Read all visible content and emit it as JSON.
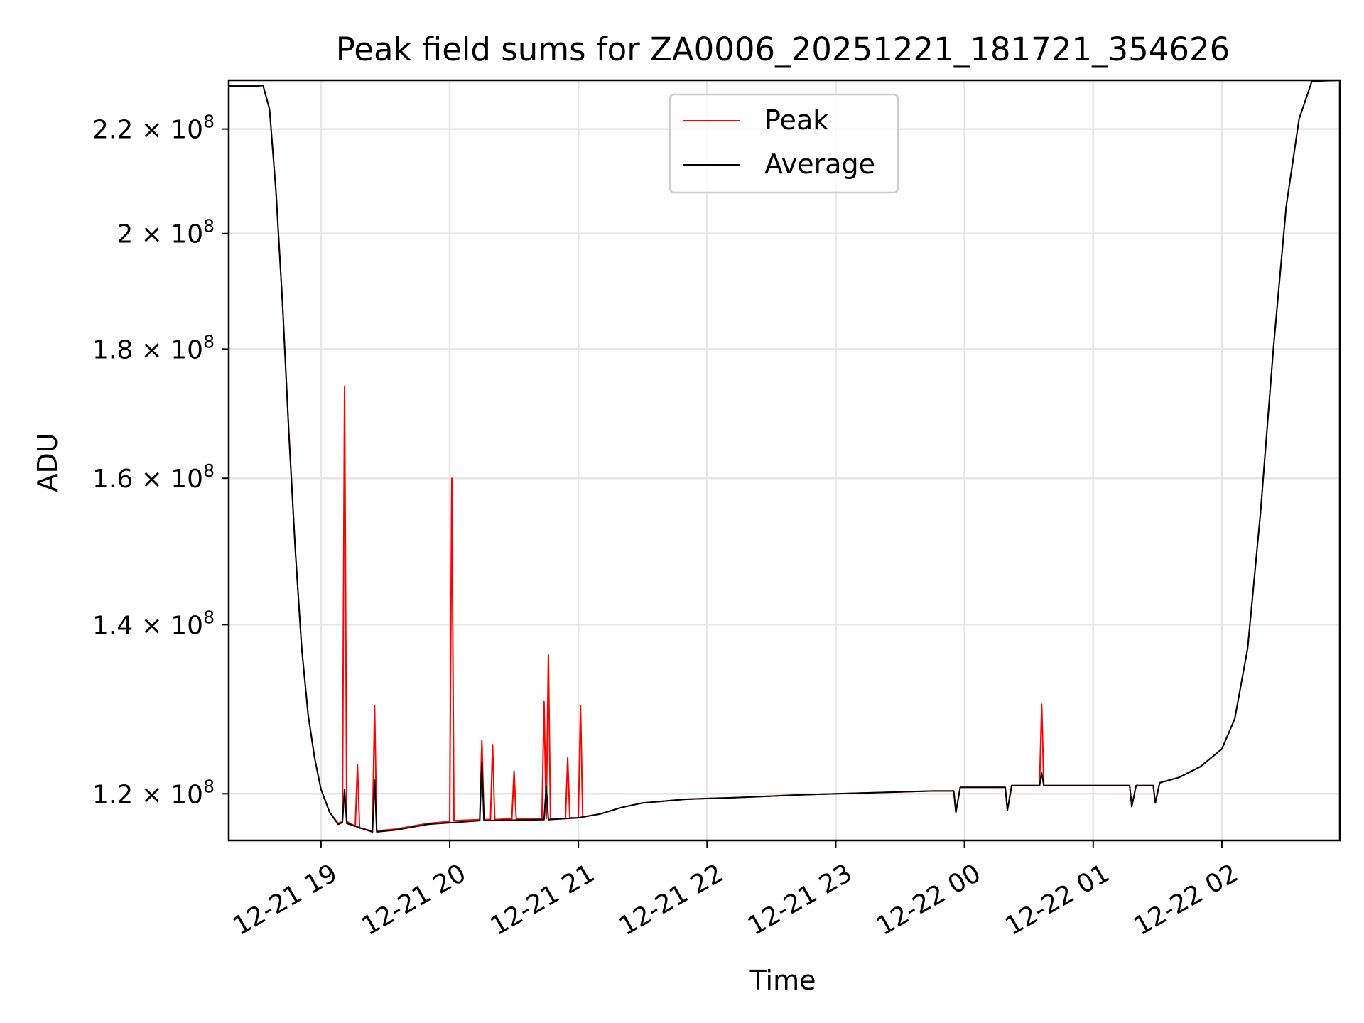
{
  "chart_data": {
    "type": "line",
    "title": "Peak field sums for ZA0006_20251221_181721_354626",
    "xlabel": "Time",
    "ylabel": "ADU",
    "y_scale": "log",
    "xlim": [
      "2025-12-21 18:17",
      "2025-12-22 02:55"
    ],
    "ylim": [
      115000000,
      230000000
    ],
    "grid": true,
    "legend_position": "upper center",
    "x_ticks": [
      "2025-12-21 19:00",
      "2025-12-21 20:00",
      "2025-12-21 21:00",
      "2025-12-21 22:00",
      "2025-12-21 23:00",
      "2025-12-22 00:00",
      "2025-12-22 01:00",
      "2025-12-22 02:00"
    ],
    "x_tick_labels": [
      "12-21 19",
      "12-21 20",
      "12-21 21",
      "12-21 22",
      "12-21 23",
      "12-22 00",
      "12-22 01",
      "12-22 02"
    ],
    "y_ticks": [
      120000000,
      140000000,
      160000000,
      180000000,
      200000000,
      220000000
    ],
    "y_tick_labels": [
      {
        "mantissa": "1.2",
        "exp": "8"
      },
      {
        "mantissa": "1.4",
        "exp": "8"
      },
      {
        "mantissa": "1.6",
        "exp": "8"
      },
      {
        "mantissa": "1.8",
        "exp": "8"
      },
      {
        "mantissa": "2",
        "exp": "8"
      },
      {
        "mantissa": "2.2",
        "exp": "8"
      }
    ],
    "series": [
      {
        "name": "Peak",
        "color": "#ff0000",
        "points": [
          [
            "2025-12-21 18:17",
            228800000
          ],
          [
            "2025-12-21 18:30",
            228800000
          ],
          [
            "2025-12-21 18:33",
            228900000
          ],
          [
            "2025-12-21 18:36",
            224000000
          ],
          [
            "2025-12-21 18:39",
            208000000
          ],
          [
            "2025-12-21 18:42",
            188000000
          ],
          [
            "2025-12-21 18:45",
            167000000
          ],
          [
            "2025-12-21 18:48",
            150000000
          ],
          [
            "2025-12-21 18:51",
            137000000
          ],
          [
            "2025-12-21 18:54",
            129000000
          ],
          [
            "2025-12-21 18:57",
            124000000
          ],
          [
            "2025-12-21 19:00",
            120500000
          ],
          [
            "2025-12-21 19:04",
            118000000
          ],
          [
            "2025-12-21 19:08",
            116800000
          ],
          [
            "2025-12-21 19:10",
            117000000
          ],
          [
            "2025-12-21 19:11",
            174000000
          ],
          [
            "2025-12-21 19:12",
            117000000
          ],
          [
            "2025-12-21 19:16",
            116500000
          ],
          [
            "2025-12-21 19:17",
            123200000
          ],
          [
            "2025-12-21 19:18",
            116300000
          ],
          [
            "2025-12-21 19:24",
            116000000
          ],
          [
            "2025-12-21 19:25",
            130000000
          ],
          [
            "2025-12-21 19:26",
            116000000
          ],
          [
            "2025-12-21 19:35",
            116200000
          ],
          [
            "2025-12-21 19:50",
            116800000
          ],
          [
            "2025-12-21 20:00",
            117000000
          ],
          [
            "2025-12-21 20:01",
            160000000
          ],
          [
            "2025-12-21 20:02",
            117100000
          ],
          [
            "2025-12-21 20:14",
            117200000
          ],
          [
            "2025-12-21 20:15",
            126000000
          ],
          [
            "2025-12-21 20:16",
            117200000
          ],
          [
            "2025-12-21 20:19",
            117200000
          ],
          [
            "2025-12-21 20:20",
            125500000
          ],
          [
            "2025-12-21 20:21",
            117200000
          ],
          [
            "2025-12-21 20:29",
            117300000
          ],
          [
            "2025-12-21 20:30",
            122500000
          ],
          [
            "2025-12-21 20:31",
            117300000
          ],
          [
            "2025-12-21 20:43",
            117300000
          ],
          [
            "2025-12-21 20:44",
            130500000
          ],
          [
            "2025-12-21 20:45",
            117300000
          ],
          [
            "2025-12-21 20:46",
            136200000
          ],
          [
            "2025-12-21 20:47",
            117300000
          ],
          [
            "2025-12-21 20:54",
            117300000
          ],
          [
            "2025-12-21 20:55",
            124000000
          ],
          [
            "2025-12-21 20:56",
            117400000
          ],
          [
            "2025-12-21 21:00",
            117400000
          ],
          [
            "2025-12-21 21:01",
            130000000
          ],
          [
            "2025-12-21 21:02",
            117500000
          ],
          [
            "2025-12-21 21:10",
            117800000
          ],
          [
            "2025-12-21 21:20",
            118500000
          ],
          [
            "2025-12-21 21:30",
            119000000
          ],
          [
            "2025-12-21 21:50",
            119400000
          ],
          [
            "2025-12-21 22:15",
            119600000
          ],
          [
            "2025-12-21 22:45",
            119900000
          ],
          [
            "2025-12-21 23:15",
            120100000
          ],
          [
            "2025-12-21 23:45",
            120300000
          ],
          [
            "2025-12-21 23:55",
            120300000
          ],
          [
            "2025-12-21 23:56",
            118000000
          ],
          [
            "2025-12-21 23:58",
            120700000
          ],
          [
            "2025-12-22 00:19",
            120700000
          ],
          [
            "2025-12-22 00:20",
            118200000
          ],
          [
            "2025-12-22 00:22",
            120900000
          ],
          [
            "2025-12-22 00:35",
            120900000
          ],
          [
            "2025-12-22 00:36",
            130200000
          ],
          [
            "2025-12-22 00:37",
            120900000
          ],
          [
            "2025-12-22 01:17",
            120900000
          ],
          [
            "2025-12-22 01:18",
            118600000
          ],
          [
            "2025-12-22 01:20",
            120900000
          ],
          [
            "2025-12-22 01:28",
            120900000
          ],
          [
            "2025-12-22 01:29",
            119000000
          ],
          [
            "2025-12-22 01:31",
            121200000
          ],
          [
            "2025-12-22 01:40",
            121800000
          ],
          [
            "2025-12-22 01:50",
            123000000
          ],
          [
            "2025-12-22 02:00",
            125000000
          ],
          [
            "2025-12-22 02:06",
            128500000
          ],
          [
            "2025-12-22 02:12",
            137000000
          ],
          [
            "2025-12-22 02:18",
            155000000
          ],
          [
            "2025-12-22 02:24",
            180000000
          ],
          [
            "2025-12-22 02:30",
            205000000
          ],
          [
            "2025-12-22 02:36",
            222000000
          ],
          [
            "2025-12-22 02:42",
            229800000
          ],
          [
            "2025-12-22 02:55",
            230000000
          ]
        ]
      },
      {
        "name": "Average",
        "color": "#000000",
        "points": [
          [
            "2025-12-21 18:17",
            228800000
          ],
          [
            "2025-12-21 18:30",
            228800000
          ],
          [
            "2025-12-21 18:33",
            228900000
          ],
          [
            "2025-12-21 18:36",
            224000000
          ],
          [
            "2025-12-21 18:39",
            208000000
          ],
          [
            "2025-12-21 18:42",
            188000000
          ],
          [
            "2025-12-21 18:45",
            167000000
          ],
          [
            "2025-12-21 18:48",
            150000000
          ],
          [
            "2025-12-21 18:51",
            137000000
          ],
          [
            "2025-12-21 18:54",
            129000000
          ],
          [
            "2025-12-21 18:57",
            124000000
          ],
          [
            "2025-12-21 19:00",
            120500000
          ],
          [
            "2025-12-21 19:04",
            118000000
          ],
          [
            "2025-12-21 19:08",
            116700000
          ],
          [
            "2025-12-21 19:10",
            116900000
          ],
          [
            "2025-12-21 19:11",
            120500000
          ],
          [
            "2025-12-21 19:12",
            116800000
          ],
          [
            "2025-12-21 19:24",
            115900000
          ],
          [
            "2025-12-21 19:25",
            121500000
          ],
          [
            "2025-12-21 19:26",
            115900000
          ],
          [
            "2025-12-21 19:35",
            116100000
          ],
          [
            "2025-12-21 19:50",
            116700000
          ],
          [
            "2025-12-21 20:14",
            117100000
          ],
          [
            "2025-12-21 20:15",
            123500000
          ],
          [
            "2025-12-21 20:16",
            117100000
          ],
          [
            "2025-12-21 20:44",
            117200000
          ],
          [
            "2025-12-21 20:45",
            120800000
          ],
          [
            "2025-12-21 20:46",
            117200000
          ],
          [
            "2025-12-21 21:00",
            117400000
          ],
          [
            "2025-12-21 21:10",
            117800000
          ],
          [
            "2025-12-21 21:20",
            118500000
          ],
          [
            "2025-12-21 21:30",
            119000000
          ],
          [
            "2025-12-21 21:50",
            119400000
          ],
          [
            "2025-12-21 22:15",
            119600000
          ],
          [
            "2025-12-21 22:45",
            119900000
          ],
          [
            "2025-12-21 23:15",
            120100000
          ],
          [
            "2025-12-21 23:45",
            120300000
          ],
          [
            "2025-12-21 23:55",
            120300000
          ],
          [
            "2025-12-21 23:56",
            118000000
          ],
          [
            "2025-12-21 23:58",
            120700000
          ],
          [
            "2025-12-22 00:19",
            120700000
          ],
          [
            "2025-12-22 00:20",
            118200000
          ],
          [
            "2025-12-22 00:22",
            120900000
          ],
          [
            "2025-12-22 00:35",
            120900000
          ],
          [
            "2025-12-22 00:36",
            122300000
          ],
          [
            "2025-12-22 00:37",
            120900000
          ],
          [
            "2025-12-22 01:17",
            120900000
          ],
          [
            "2025-12-22 01:18",
            118600000
          ],
          [
            "2025-12-22 01:20",
            120900000
          ],
          [
            "2025-12-22 01:28",
            120900000
          ],
          [
            "2025-12-22 01:29",
            119000000
          ],
          [
            "2025-12-22 01:31",
            121200000
          ],
          [
            "2025-12-22 01:40",
            121800000
          ],
          [
            "2025-12-22 01:50",
            123000000
          ],
          [
            "2025-12-22 02:00",
            125000000
          ],
          [
            "2025-12-22 02:06",
            128500000
          ],
          [
            "2025-12-22 02:12",
            137000000
          ],
          [
            "2025-12-22 02:18",
            155000000
          ],
          [
            "2025-12-22 02:24",
            180000000
          ],
          [
            "2025-12-22 02:30",
            205000000
          ],
          [
            "2025-12-22 02:36",
            222000000
          ],
          [
            "2025-12-22 02:42",
            229800000
          ],
          [
            "2025-12-22 02:55",
            230000000
          ]
        ]
      }
    ]
  }
}
